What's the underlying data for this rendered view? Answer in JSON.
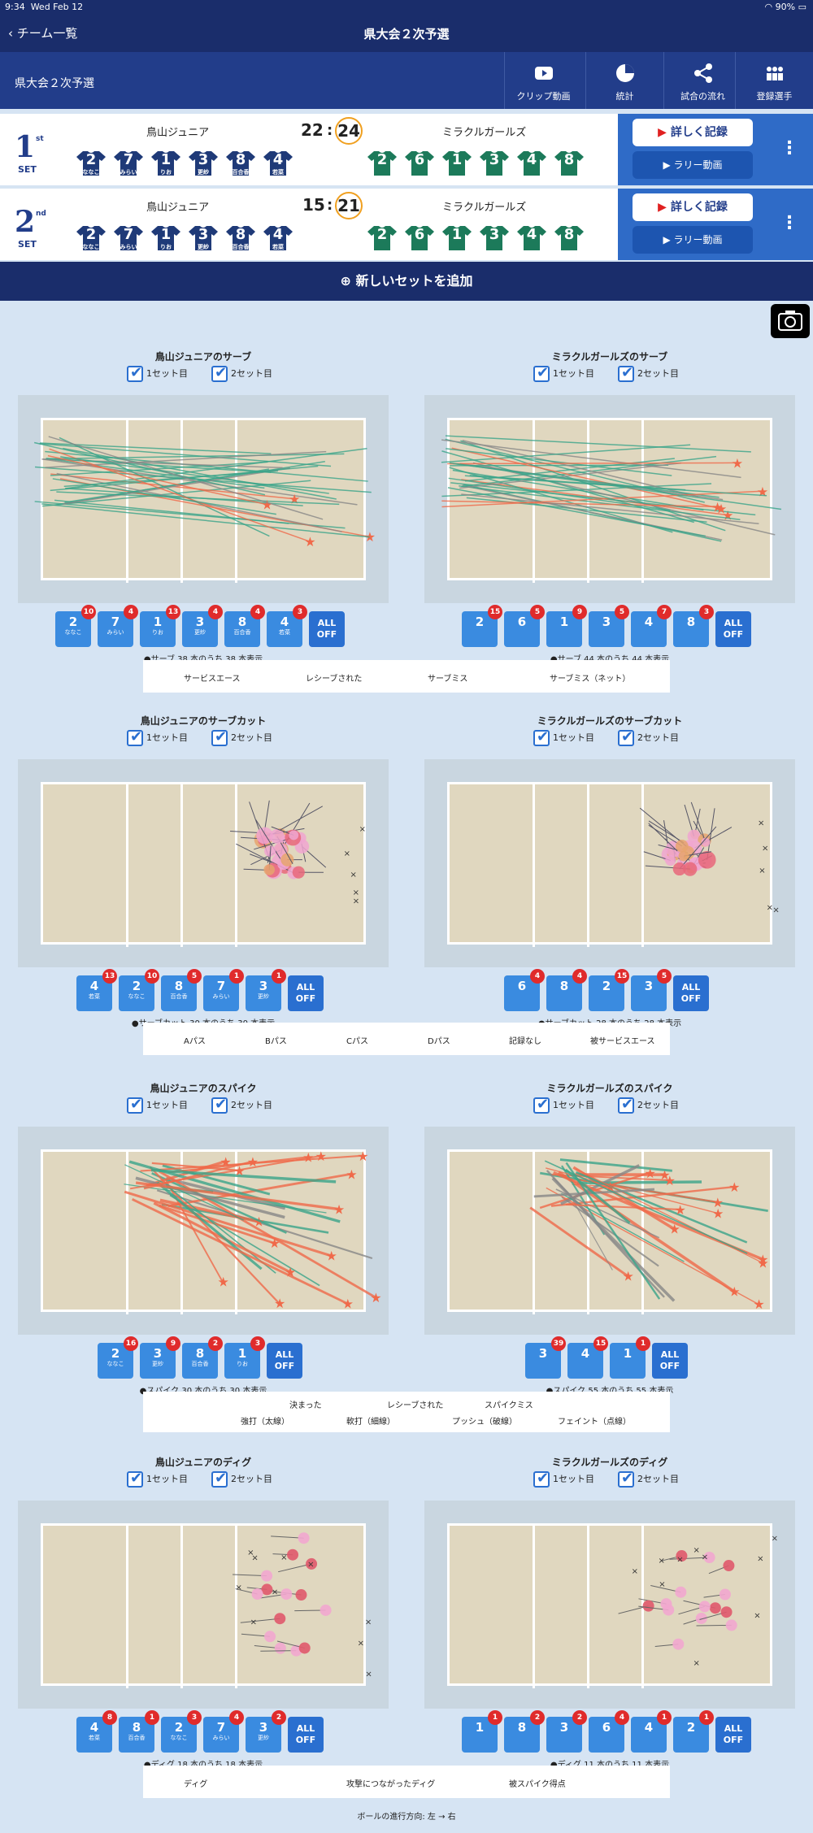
{
  "status": {
    "time": "9:34",
    "date": "Wed Feb 12",
    "battery": "90%"
  },
  "nav": {
    "back": "チーム一覧",
    "title": "県大会２次予選"
  },
  "toolbar": {
    "tournament": "県大会２次予選",
    "clip": "クリップ動画",
    "stats": "統計",
    "flow": "試合の流れ",
    "players": "登録選手"
  },
  "sets": [
    {
      "n": "1",
      "sup": "st",
      "word": "SET",
      "home": "鳥山ジュニア",
      "away": "ミラクルガールズ",
      "hs": "22",
      "as": "24",
      "detail": "詳しく記録",
      "rally": "ラリー動画"
    },
    {
      "n": "2",
      "sup": "nd",
      "word": "SET",
      "home": "鳥山ジュニア",
      "away": "ミラクルガールズ",
      "hs": "15",
      "as": "21",
      "detail": "詳しく記録",
      "rally": "ラリー動画"
    }
  ],
  "home_jerseys": [
    {
      "num": "2",
      "name": "ななこ"
    },
    {
      "num": "7",
      "name": "みらい"
    },
    {
      "num": "1",
      "name": "りお"
    },
    {
      "num": "3",
      "name": "更紗"
    },
    {
      "num": "8",
      "name": "百合香"
    },
    {
      "num": "4",
      "name": "若菜"
    }
  ],
  "away_jerseys": [
    "2",
    "6",
    "1",
    "3",
    "4",
    "8"
  ],
  "add_set": "新しいセットを追加",
  "set1": "1セット目",
  "set2": "2セット目",
  "sections": {
    "s_serve_h": "鳥山ジュニアのサーブ",
    "s_serve_a": "ミラクルガールズのサーブ",
    "s_cut_h": "鳥山ジュニアのサーブカット",
    "s_cut_a": "ミラクルガールズのサーブカット",
    "s_spike_h": "鳥山ジュニアのスパイク",
    "s_spike_a": "ミラクルガールズのスパイク",
    "s_dig_h": "鳥山ジュニアのディグ",
    "s_dig_a": "ミラクルガールズのディグ"
  },
  "captions": {
    "serve_h": "●サーブ 38 本のうち 38 本表示",
    "serve_a": "●サーブ 44 本のうち 44 本表示",
    "cut_h": "●サーブカット 30 本のうち 30 本表示",
    "cut_a": "●サーブカット 28 本のうち 28 本表示",
    "spike_h": "●スパイク 30 本のうち 30 本表示",
    "spike_a": "●スパイク 55 本のうち 55 本表示",
    "dig_h": "●ディグ 18 本のうち 18 本表示",
    "dig_a": "●ディグ 11 本のうち 11 本表示"
  },
  "chips": {
    "serve_h": [
      {
        "j": "2",
        "n": "ななこ",
        "b": "10"
      },
      {
        "j": "7",
        "n": "みらい",
        "b": "4"
      },
      {
        "j": "1",
        "n": "りお",
        "b": "13"
      },
      {
        "j": "3",
        "n": "更紗",
        "b": "4"
      },
      {
        "j": "8",
        "n": "百合香",
        "b": "4"
      },
      {
        "j": "4",
        "n": "若菜",
        "b": "3"
      }
    ],
    "serve_a": [
      {
        "j": "2",
        "n": "",
        "b": "15"
      },
      {
        "j": "6",
        "n": "",
        "b": "5"
      },
      {
        "j": "1",
        "n": "",
        "b": "9"
      },
      {
        "j": "3",
        "n": "",
        "b": "5"
      },
      {
        "j": "4",
        "n": "",
        "b": "7"
      },
      {
        "j": "8",
        "n": "",
        "b": "3"
      }
    ],
    "cut_h": [
      {
        "j": "4",
        "n": "若菜",
        "b": "13"
      },
      {
        "j": "2",
        "n": "ななこ",
        "b": "10"
      },
      {
        "j": "8",
        "n": "百合香",
        "b": "5"
      },
      {
        "j": "7",
        "n": "みらい",
        "b": "1"
      },
      {
        "j": "3",
        "n": "更紗",
        "b": "1"
      }
    ],
    "cut_a": [
      {
        "j": "6",
        "n": "",
        "b": "4"
      },
      {
        "j": "8",
        "n": "",
        "b": "4"
      },
      {
        "j": "2",
        "n": "",
        "b": "15"
      },
      {
        "j": "3",
        "n": "",
        "b": "5"
      }
    ],
    "spike_h": [
      {
        "j": "2",
        "n": "ななこ",
        "b": "16"
      },
      {
        "j": "3",
        "n": "更紗",
        "b": "9"
      },
      {
        "j": "8",
        "n": "百合香",
        "b": "2"
      },
      {
        "j": "1",
        "n": "りお",
        "b": "3"
      }
    ],
    "spike_a": [
      {
        "j": "3",
        "n": "",
        "b": "39"
      },
      {
        "j": "4",
        "n": "",
        "b": "15"
      },
      {
        "j": "1",
        "n": "",
        "b": "1"
      }
    ],
    "dig_h": [
      {
        "j": "4",
        "n": "若菜",
        "b": "8"
      },
      {
        "j": "8",
        "n": "百合香",
        "b": "1"
      },
      {
        "j": "2",
        "n": "ななこ",
        "b": "3"
      },
      {
        "j": "7",
        "n": "みらい",
        "b": "4"
      },
      {
        "j": "3",
        "n": "更紗",
        "b": "2"
      }
    ],
    "dig_a": [
      {
        "j": "1",
        "n": "",
        "b": "1"
      },
      {
        "j": "8",
        "n": "",
        "b": "2"
      },
      {
        "j": "3",
        "n": "",
        "b": "2"
      },
      {
        "j": "6",
        "n": "",
        "b": "4"
      },
      {
        "j": "4",
        "n": "",
        "b": "1"
      },
      {
        "j": "2",
        "n": "",
        "b": "1"
      }
    ]
  },
  "alloff": "ALL OFF",
  "legends": {
    "serve": [
      "サービスエース",
      "レシーブされた",
      "サーブミス",
      "サーブミス（ネット）"
    ],
    "cut": [
      "Aパス",
      "Bパス",
      "Cパス",
      "Dパス",
      "記録なし",
      "被サービスエース"
    ],
    "spike1": [
      "決まった",
      "レシーブされた",
      "スパイクミス"
    ],
    "spike2": [
      "強打（太線）",
      "軟打（細線）",
      "プッシュ（破線）",
      "フェイント（点線）"
    ],
    "dig": [
      "ディグ",
      "攻撃につながったディグ",
      "被スパイク得点"
    ]
  },
  "footer": "ボールの進行方向: 左 → 右",
  "colors": {
    "navy": "#1a2d6b",
    "ace": "#f06a4a",
    "receive": "#3aa58a",
    "miss": "#888888"
  }
}
